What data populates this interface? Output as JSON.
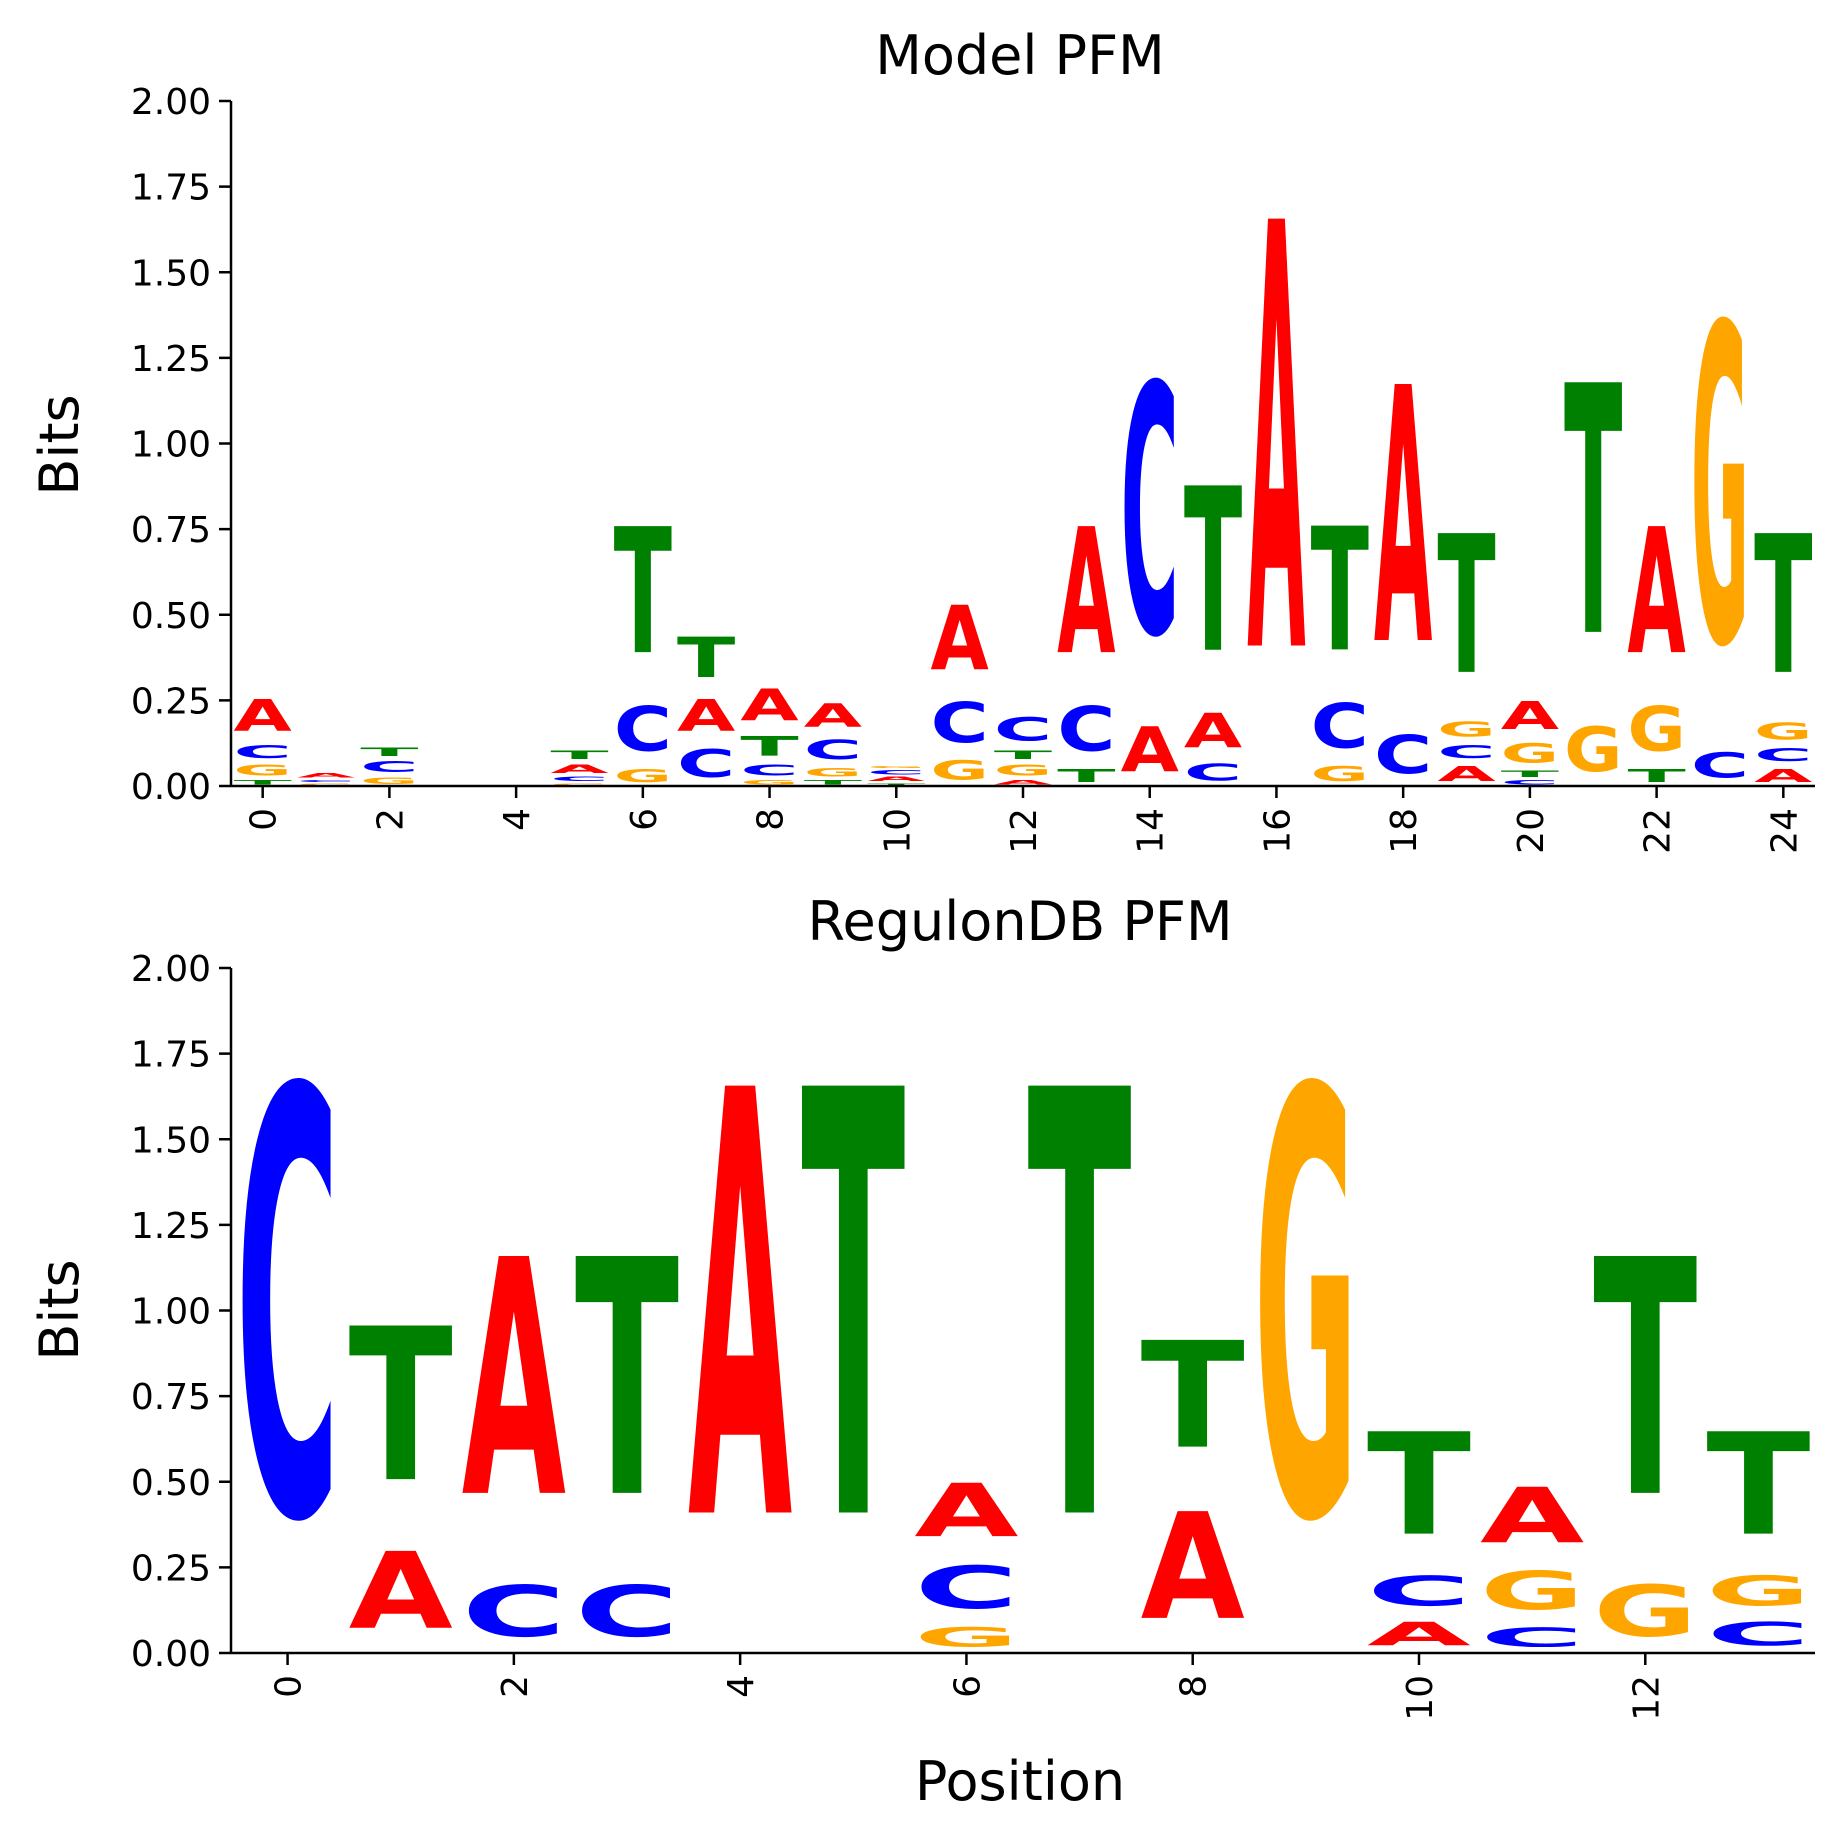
{
  "colors": {
    "A": "#ff0000",
    "C": "#0000ff",
    "G": "#ffa500",
    "T": "#008000"
  },
  "chart_data": [
    {
      "type": "sequence-logo",
      "title": "Model PFM",
      "xlabel": "",
      "ylabel": "Bits",
      "ylim": [
        0,
        2
      ],
      "yticks": [
        "0.00",
        "0.25",
        "0.50",
        "0.75",
        "1.00",
        "1.25",
        "1.50",
        "1.75",
        "2.00"
      ],
      "xticks": [
        "0",
        "2",
        "4",
        "6",
        "8",
        "10",
        "12",
        "14",
        "16",
        "18",
        "20",
        "22",
        "24"
      ],
      "positions": [
        [
          [
            "T",
            0.02
          ],
          [
            "G",
            0.05
          ],
          [
            "C",
            0.06
          ],
          [
            "A",
            0.15
          ]
        ],
        [
          [
            "G",
            0.01
          ],
          [
            "C",
            0.01
          ],
          [
            "A",
            0.02
          ]
        ],
        [
          [
            "G",
            0.03
          ],
          [
            "C",
            0.05
          ],
          [
            "T",
            0.04
          ]
        ],
        [],
        [],
        [
          [
            "G",
            0.01
          ],
          [
            "C",
            0.02
          ],
          [
            "A",
            0.04
          ],
          [
            "T",
            0.04
          ]
        ],
        [
          [
            "G",
            0.06
          ],
          [
            "C",
            0.21
          ],
          [
            "T",
            0.59
          ]
        ],
        [
          [
            "C",
            0.13
          ],
          [
            "A",
            0.15
          ],
          [
            "T",
            0.19
          ]
        ],
        [
          [
            "G",
            0.02
          ],
          [
            "C",
            0.05
          ],
          [
            "T",
            0.09
          ],
          [
            "A",
            0.15
          ]
        ],
        [
          [
            "T",
            0.02
          ],
          [
            "G",
            0.04
          ],
          [
            "C",
            0.09
          ],
          [
            "A",
            0.11
          ]
        ],
        [
          [
            "T",
            0.01
          ],
          [
            "A",
            0.02
          ],
          [
            "C",
            0.02
          ],
          [
            "G",
            0.01
          ]
        ],
        [
          [
            "G",
            0.09
          ],
          [
            "C",
            0.19
          ],
          [
            "A",
            0.3
          ]
        ],
        [
          [
            "A",
            0.02
          ],
          [
            "G",
            0.05
          ],
          [
            "T",
            0.04
          ],
          [
            "C",
            0.11
          ]
        ],
        [
          [
            "T",
            0.06
          ],
          [
            "C",
            0.21
          ],
          [
            "A",
            0.59
          ]
        ],
        [
          [
            "A",
            0.21
          ],
          [
            "C",
            1.17
          ]
        ],
        [
          [
            "C",
            0.08
          ],
          [
            "A",
            0.16
          ],
          [
            "T",
            0.77
          ]
        ],
        [
          [
            "A",
            2.0
          ]
        ],
        [
          [
            "G",
            0.07
          ],
          [
            "C",
            0.21
          ],
          [
            "T",
            0.58
          ]
        ],
        [
          [
            "C",
            0.18
          ],
          [
            "A",
            1.2
          ]
        ],
        [
          [
            "A",
            0.07
          ],
          [
            "C",
            0.06
          ],
          [
            "G",
            0.07
          ],
          [
            "T",
            0.65
          ]
        ],
        [
          [
            "C",
            0.02
          ],
          [
            "T",
            0.03
          ],
          [
            "G",
            0.09
          ],
          [
            "A",
            0.13
          ]
        ],
        [
          [
            "G",
            0.21
          ],
          [
            "T",
            1.17
          ]
        ],
        [
          [
            "T",
            0.06
          ],
          [
            "G",
            0.21
          ],
          [
            "A",
            0.59
          ]
        ],
        [
          [
            "C",
            0.12
          ],
          [
            "G",
            1.49
          ]
        ],
        [
          [
            "A",
            0.06
          ],
          [
            "C",
            0.06
          ],
          [
            "G",
            0.08
          ],
          [
            "T",
            0.65
          ]
        ]
      ]
    },
    {
      "type": "sequence-logo",
      "title": "RegulonDB PFM",
      "xlabel": "Position",
      "ylabel": "Bits",
      "ylim": [
        0,
        2
      ],
      "yticks": [
        "0.00",
        "0.25",
        "0.50",
        "0.75",
        "1.00",
        "1.25",
        "1.50",
        "1.75",
        "2.00"
      ],
      "xticks": [
        "0",
        "2",
        "4",
        "6",
        "8",
        "10",
        "12"
      ],
      "positions": [
        [
          [
            "C",
            2.0
          ]
        ],
        [
          [
            "A",
            0.36
          ],
          [
            "T",
            0.72
          ]
        ],
        [
          [
            "C",
            0.24
          ],
          [
            "A",
            1.11
          ]
        ],
        [
          [
            "C",
            0.24
          ],
          [
            "T",
            1.11
          ]
        ],
        [
          [
            "A",
            2.0
          ]
        ],
        [
          [
            "T",
            2.0
          ]
        ],
        [
          [
            "G",
            0.09
          ],
          [
            "C",
            0.2
          ],
          [
            "A",
            0.25
          ]
        ],
        [
          [
            "T",
            2.0
          ]
        ],
        [
          [
            "A",
            0.5
          ],
          [
            "T",
            0.5
          ]
        ],
        [
          [
            "G",
            2.0
          ]
        ],
        [
          [
            "A",
            0.11
          ],
          [
            "C",
            0.14
          ],
          [
            "T",
            0.48
          ]
        ],
        [
          [
            "C",
            0.09
          ],
          [
            "G",
            0.18
          ],
          [
            "A",
            0.26
          ]
        ],
        [
          [
            "G",
            0.24
          ],
          [
            "T",
            1.11
          ]
        ],
        [
          [
            "C",
            0.11
          ],
          [
            "G",
            0.14
          ],
          [
            "T",
            0.48
          ]
        ]
      ]
    }
  ]
}
